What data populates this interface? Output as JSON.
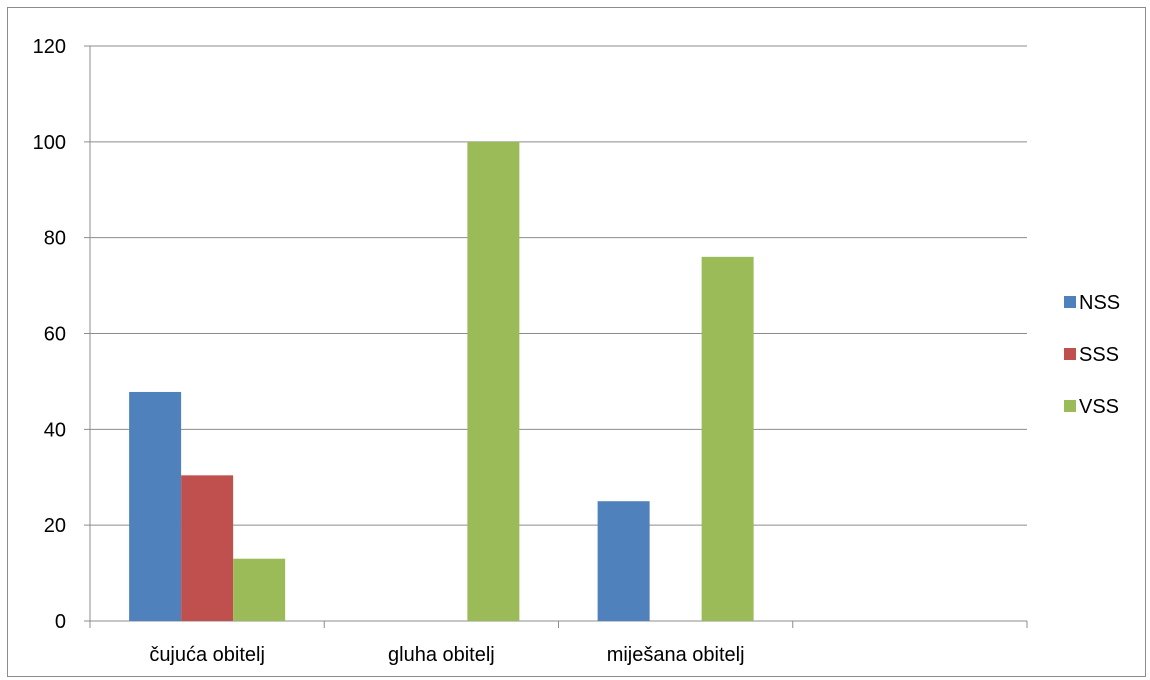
{
  "chart_data": {
    "type": "bar",
    "categories": [
      "čujuća obitelj",
      "gluha obitelj",
      "miješana obitelj",
      ""
    ],
    "series": [
      {
        "name": "NSS",
        "color": "#4f81bd",
        "values": [
          47.8,
          0,
          25,
          null
        ]
      },
      {
        "name": "SSS",
        "color": "#c0504d",
        "values": [
          30.4,
          0,
          0,
          null
        ]
      },
      {
        "name": "VSS",
        "color": "#9bbb59",
        "values": [
          13,
          100,
          76,
          null
        ]
      }
    ],
    "ylim": [
      0,
      120
    ],
    "yticks": [
      0,
      20,
      40,
      60,
      80,
      100,
      120
    ],
    "grid": true,
    "legend_position": "right",
    "title": "",
    "xlabel": "",
    "ylabel": ""
  }
}
